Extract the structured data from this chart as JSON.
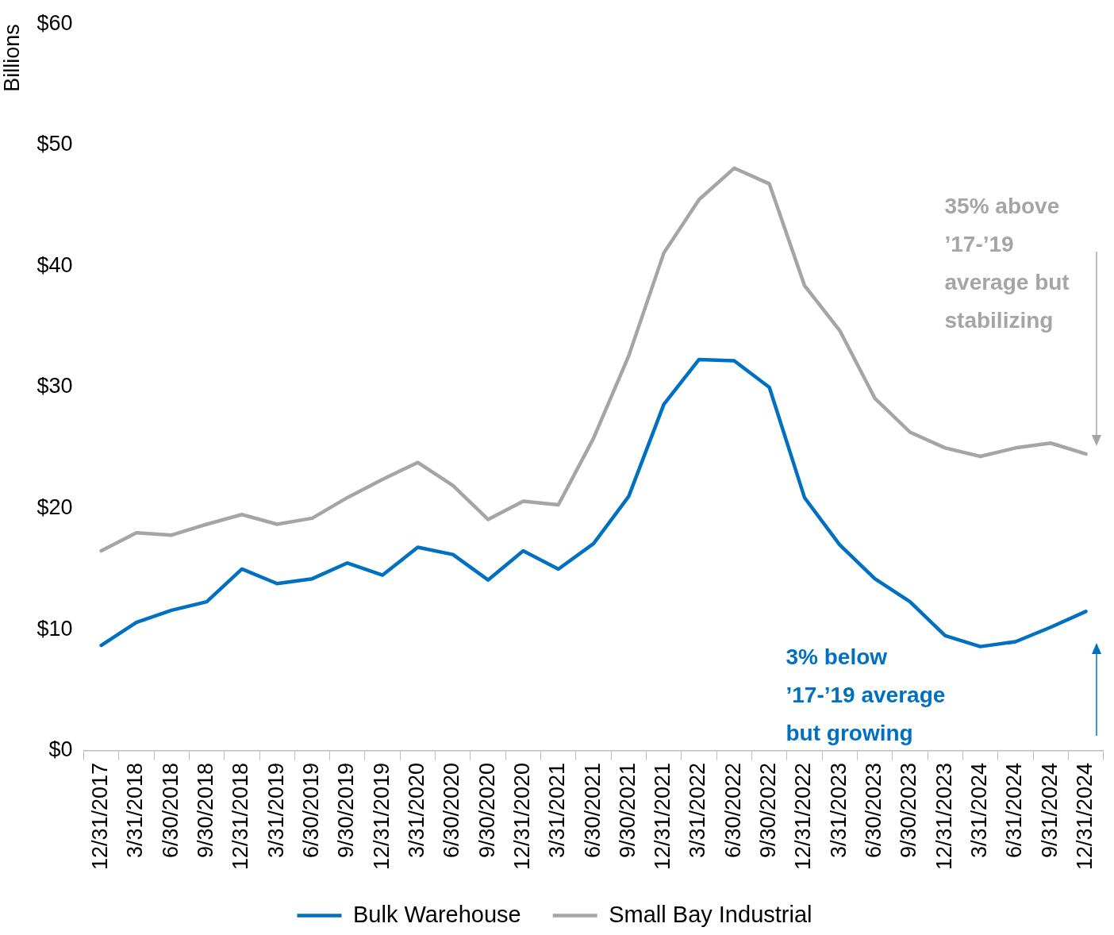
{
  "chart_data": {
    "type": "line",
    "ylabel": "Billions",
    "categories": [
      "12/31/2017",
      "3/31/2018",
      "6/30/2018",
      "9/30/2018",
      "12/31/2018",
      "3/31/2019",
      "6/30/2019",
      "9/30/2019",
      "12/31/2019",
      "3/31/2020",
      "6/30/2020",
      "9/30/2020",
      "12/31/2020",
      "3/31/2021",
      "6/30/2021",
      "9/30/2021",
      "12/31/2021",
      "3/31/2022",
      "6/30/2022",
      "9/30/2022",
      "12/31/2022",
      "3/31/2023",
      "6/30/2023",
      "9/30/2023",
      "12/31/2023",
      "3/31/2024",
      "6/31/2024",
      "9/31/2024",
      "12/31/2024"
    ],
    "series": [
      {
        "name": "Bulk Warehouse",
        "color": "#0070c0",
        "values": [
          8.7,
          10.6,
          11.6,
          12.3,
          15.0,
          13.8,
          14.2,
          15.5,
          14.5,
          16.8,
          16.2,
          14.1,
          16.5,
          15.0,
          17.1,
          21.0,
          28.6,
          32.3,
          32.2,
          30.0,
          20.9,
          17.0,
          14.2,
          12.3,
          9.5,
          8.6,
          9.0,
          10.2,
          11.5
        ]
      },
      {
        "name": "Small Bay Industrial",
        "color": "#a5a5a5",
        "values": [
          16.5,
          18.0,
          17.8,
          18.7,
          19.5,
          18.7,
          19.2,
          20.9,
          22.4,
          23.8,
          21.9,
          19.1,
          20.6,
          20.3,
          25.8,
          32.6,
          41.1,
          45.5,
          48.1,
          46.8,
          38.4,
          34.7,
          29.1,
          26.3,
          25.0,
          24.3,
          25.0,
          25.4,
          24.5
        ]
      }
    ],
    "ylim": [
      0,
      60
    ],
    "yticks": [
      {
        "value": 0,
        "label": "$0"
      },
      {
        "value": 10,
        "label": "$10"
      },
      {
        "value": 20,
        "label": "$20"
      },
      {
        "value": 30,
        "label": "$30"
      },
      {
        "value": 40,
        "label": "$40"
      },
      {
        "value": 50,
        "label": "$50"
      },
      {
        "value": 60,
        "label": "$60"
      }
    ],
    "annotations": [
      "35% above ’17-’19 average but stabilizing",
      "3% below ’17-’19 average but growing"
    ],
    "grid": false,
    "legend": "bottom",
    "marker": "none",
    "line_style": "solid"
  }
}
